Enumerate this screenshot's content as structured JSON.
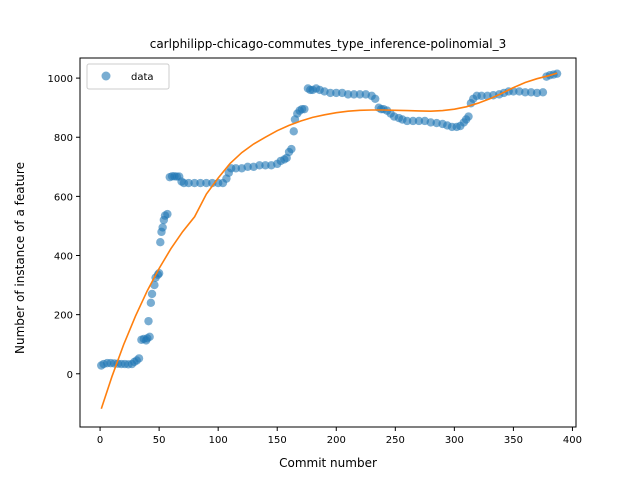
{
  "chart_data": {
    "type": "scatter",
    "title": "carlphilipp-chicago-commutes_type_inference-polinomial_3",
    "xlabel": "Commit number",
    "ylabel": "Number of instance of a feature",
    "xlim": [
      -17,
      403
    ],
    "ylim": [
      -180,
      1068
    ],
    "xticks": [
      0,
      50,
      100,
      150,
      200,
      250,
      300,
      350,
      400
    ],
    "yticks": [
      0,
      200,
      400,
      600,
      800,
      1000
    ],
    "grid": false,
    "legend": {
      "placement": "top-left",
      "entries": [
        "data"
      ]
    },
    "colors": {
      "data": "#1f77b4",
      "fit": "#ff7f0e"
    },
    "series": [
      {
        "name": "data",
        "kind": "scatter",
        "points": [
          [
            1,
            28
          ],
          [
            3,
            33
          ],
          [
            6,
            36
          ],
          [
            9,
            36
          ],
          [
            12,
            35
          ],
          [
            15,
            34
          ],
          [
            18,
            33
          ],
          [
            21,
            33
          ],
          [
            24,
            32
          ],
          [
            27,
            33
          ],
          [
            29,
            40
          ],
          [
            31,
            45
          ],
          [
            33,
            52
          ],
          [
            35,
            115
          ],
          [
            37,
            118
          ],
          [
            39,
            113
          ],
          [
            40,
            120
          ],
          [
            41,
            178
          ],
          [
            42,
            125
          ],
          [
            43,
            240
          ],
          [
            44,
            270
          ],
          [
            46,
            300
          ],
          [
            47,
            325
          ],
          [
            49,
            335
          ],
          [
            50,
            340
          ],
          [
            51,
            445
          ],
          [
            52,
            480
          ],
          [
            53,
            495
          ],
          [
            54,
            520
          ],
          [
            55,
            535
          ],
          [
            57,
            540
          ],
          [
            59,
            665
          ],
          [
            61,
            668
          ],
          [
            63,
            668
          ],
          [
            65,
            667
          ],
          [
            67,
            667
          ],
          [
            69,
            650
          ],
          [
            71,
            645
          ],
          [
            75,
            645
          ],
          [
            80,
            645
          ],
          [
            85,
            645
          ],
          [
            90,
            645
          ],
          [
            95,
            645
          ],
          [
            100,
            645
          ],
          [
            104,
            645
          ],
          [
            107,
            660
          ],
          [
            109,
            680
          ],
          [
            111,
            695
          ],
          [
            115,
            695
          ],
          [
            120,
            695
          ],
          [
            125,
            700
          ],
          [
            130,
            700
          ],
          [
            135,
            705
          ],
          [
            140,
            705
          ],
          [
            145,
            705
          ],
          [
            150,
            710
          ],
          [
            153,
            720
          ],
          [
            156,
            725
          ],
          [
            158,
            730
          ],
          [
            160,
            750
          ],
          [
            162,
            760
          ],
          [
            164,
            820
          ],
          [
            165,
            860
          ],
          [
            167,
            880
          ],
          [
            169,
            890
          ],
          [
            171,
            895
          ],
          [
            173,
            895
          ],
          [
            176,
            965
          ],
          [
            178,
            960
          ],
          [
            180,
            960
          ],
          [
            183,
            965
          ],
          [
            186,
            960
          ],
          [
            190,
            955
          ],
          [
            195,
            950
          ],
          [
            200,
            950
          ],
          [
            205,
            950
          ],
          [
            210,
            945
          ],
          [
            215,
            945
          ],
          [
            220,
            945
          ],
          [
            225,
            945
          ],
          [
            230,
            940
          ],
          [
            233,
            930
          ],
          [
            236,
            900
          ],
          [
            238,
            895
          ],
          [
            240,
            895
          ],
          [
            243,
            890
          ],
          [
            246,
            880
          ],
          [
            249,
            870
          ],
          [
            253,
            865
          ],
          [
            256,
            860
          ],
          [
            260,
            855
          ],
          [
            265,
            855
          ],
          [
            270,
            855
          ],
          [
            275,
            855
          ],
          [
            280,
            850
          ],
          [
            285,
            848
          ],
          [
            290,
            845
          ],
          [
            294,
            840
          ],
          [
            298,
            835
          ],
          [
            302,
            835
          ],
          [
            305,
            838
          ],
          [
            308,
            850
          ],
          [
            310,
            860
          ],
          [
            312,
            870
          ],
          [
            314,
            915
          ],
          [
            316,
            930
          ],
          [
            319,
            940
          ],
          [
            323,
            940
          ],
          [
            328,
            940
          ],
          [
            333,
            942
          ],
          [
            338,
            945
          ],
          [
            342,
            950
          ],
          [
            346,
            955
          ],
          [
            350,
            955
          ],
          [
            355,
            955
          ],
          [
            360,
            952
          ],
          [
            365,
            952
          ],
          [
            370,
            950
          ],
          [
            375,
            952
          ],
          [
            378,
            1005
          ],
          [
            381,
            1010
          ],
          [
            384,
            1012
          ],
          [
            387,
            1015
          ]
        ]
      },
      {
        "name": "",
        "kind": "line",
        "points": [
          [
            1,
            -118
          ],
          [
            10,
            -10
          ],
          [
            20,
            99
          ],
          [
            30,
            195
          ],
          [
            40,
            281
          ],
          [
            50,
            356
          ],
          [
            60,
            423
          ],
          [
            70,
            481
          ],
          [
            80,
            531
          ],
          [
            90,
            608
          ],
          [
            100,
            662
          ],
          [
            110,
            711
          ],
          [
            120,
            748
          ],
          [
            130,
            777
          ],
          [
            140,
            800
          ],
          [
            150,
            822
          ],
          [
            160,
            840
          ],
          [
            170,
            855
          ],
          [
            180,
            867
          ],
          [
            190,
            876
          ],
          [
            200,
            883
          ],
          [
            210,
            888
          ],
          [
            220,
            891
          ],
          [
            230,
            892
          ],
          [
            240,
            892
          ],
          [
            250,
            891
          ],
          [
            260,
            890
          ],
          [
            270,
            889
          ],
          [
            280,
            888
          ],
          [
            290,
            890
          ],
          [
            300,
            895
          ],
          [
            310,
            903
          ],
          [
            320,
            915
          ],
          [
            330,
            930
          ],
          [
            340,
            948
          ],
          [
            350,
            968
          ],
          [
            360,
            985
          ],
          [
            370,
            998
          ],
          [
            380,
            1008
          ],
          [
            387,
            1017
          ]
        ]
      }
    ]
  }
}
